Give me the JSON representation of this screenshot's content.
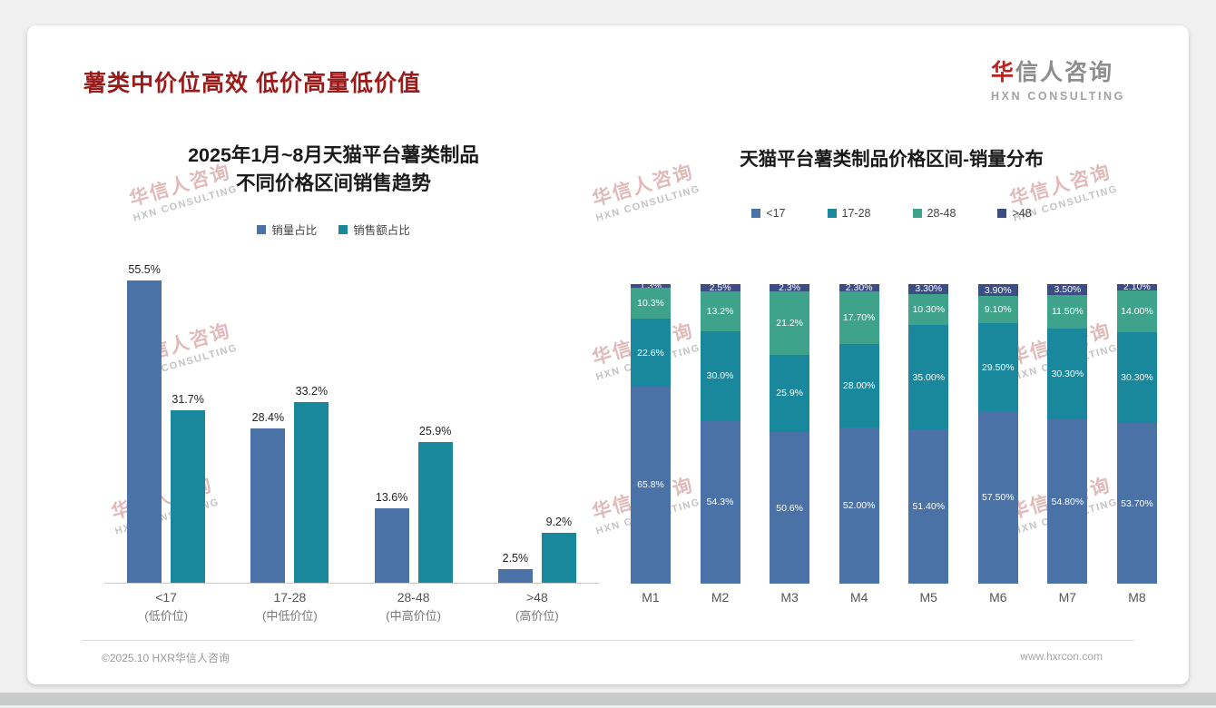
{
  "page": {
    "title": "薯类中价位高效 低价高量低价值",
    "logo": {
      "cn_first": "华",
      "cn_rest": "信人咨询",
      "en": "HXN CONSULTING"
    },
    "watermark": {
      "cn": "华信人咨询",
      "en": "HXN CONSULTING"
    },
    "footer": {
      "left": "©2025.10 HXR华信人咨询",
      "right": "www.hxrcon.com"
    }
  },
  "colors": {
    "blue": "#4a72a6",
    "teal": "#19879c",
    "green": "#3fa28a",
    "navy": "#3c4d85"
  },
  "chart_data": [
    {
      "type": "bar",
      "title_line1": "2025年1月~8月天猫平台薯类制品",
      "title_line2": "不同价格区间销售趋势",
      "categories": [
        "<17",
        "17-28",
        "28-48",
        ">48"
      ],
      "category_sublabels": [
        "(低价位)",
        "(中低价位)",
        "(中高价位)",
        "(高价位)"
      ],
      "series": [
        {
          "name": "销量占比",
          "color_key": "blue",
          "values": [
            55.5,
            28.4,
            13.6,
            2.5
          ]
        },
        {
          "name": "销售额占比",
          "color_key": "teal",
          "values": [
            31.7,
            33.2,
            25.9,
            9.2
          ]
        }
      ],
      "value_suffix": "%",
      "ylim": [
        0,
        60
      ],
      "legend_position": "top",
      "grid": false
    },
    {
      "type": "stacked-bar",
      "title": "天猫平台薯类制品价格区间-销量分布",
      "categories": [
        "M1",
        "M2",
        "M3",
        "M4",
        "M5",
        "M6",
        "M7",
        "M8"
      ],
      "series": [
        {
          "name": "<17",
          "color_key": "blue",
          "values": [
            65.8,
            54.3,
            50.6,
            52.0,
            51.4,
            57.5,
            54.8,
            53.7
          ],
          "labels": [
            "65.8%",
            "54.3%",
            "50.6%",
            "52.00%",
            "51.40%",
            "57.50%",
            "54.80%",
            "53.70%"
          ]
        },
        {
          "name": "17-28",
          "color_key": "teal",
          "values": [
            22.6,
            30.0,
            25.9,
            28.0,
            35.0,
            29.5,
            30.3,
            30.3
          ],
          "labels": [
            "22.6%",
            "30.0%",
            "25.9%",
            "28.00%",
            "35.00%",
            "29.50%",
            "30.30%",
            "30.30%"
          ]
        },
        {
          "name": "28-48",
          "color_key": "green",
          "values": [
            10.3,
            13.2,
            21.2,
            17.7,
            10.3,
            9.1,
            11.5,
            14.0
          ],
          "labels": [
            "10.3%",
            "13.2%",
            "21.2%",
            "17.70%",
            "10.30%",
            "9.10%",
            "11.50%",
            "14.00%"
          ]
        },
        {
          "name": ">48",
          "color_key": "navy",
          "values": [
            1.3,
            2.5,
            2.3,
            2.3,
            3.3,
            3.9,
            3.5,
            2.1
          ],
          "labels": [
            "1.3%",
            "2.5%",
            "2.3%",
            "2.30%",
            "3.30%",
            "3.90%",
            "3.50%",
            "2.10%"
          ]
        }
      ],
      "ylim": [
        0,
        100
      ],
      "legend_position": "top",
      "grid": false
    }
  ]
}
